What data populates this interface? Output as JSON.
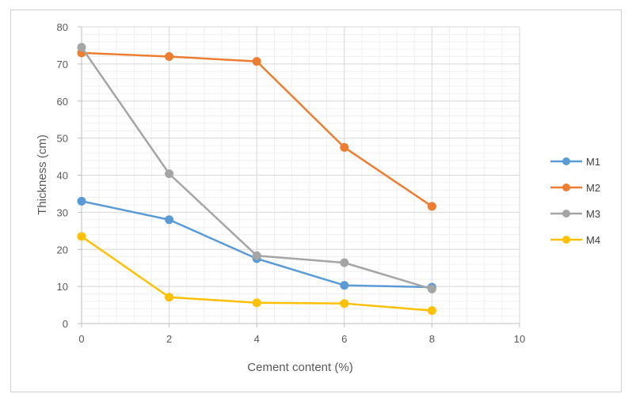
{
  "chart_data": {
    "type": "line",
    "title": "",
    "xlabel": "Cement content (%)",
    "ylabel": "Thickness (cm)",
    "xlim": [
      0,
      10
    ],
    "ylim": [
      0,
      80
    ],
    "x_ticks": [
      0,
      2,
      4,
      6,
      8,
      10
    ],
    "y_ticks": [
      0,
      10,
      20,
      30,
      40,
      50,
      60,
      70,
      80
    ],
    "grid": true,
    "legend_position": "right",
    "x": [
      0,
      2,
      4,
      6,
      8
    ],
    "series": [
      {
        "name": "M1",
        "color": "#5b9bd5",
        "values": [
          33.0,
          28.0,
          17.5,
          10.3,
          9.8
        ]
      },
      {
        "name": "M2",
        "color": "#ed7d31",
        "values": [
          73.0,
          72.0,
          70.7,
          47.5,
          31.6
        ]
      },
      {
        "name": "M3",
        "color": "#a5a5a5",
        "values": [
          74.5,
          40.4,
          18.3,
          16.4,
          9.3
        ]
      },
      {
        "name": "M4",
        "color": "#ffc000",
        "values": [
          23.5,
          7.1,
          5.6,
          5.4,
          3.5
        ]
      }
    ]
  }
}
